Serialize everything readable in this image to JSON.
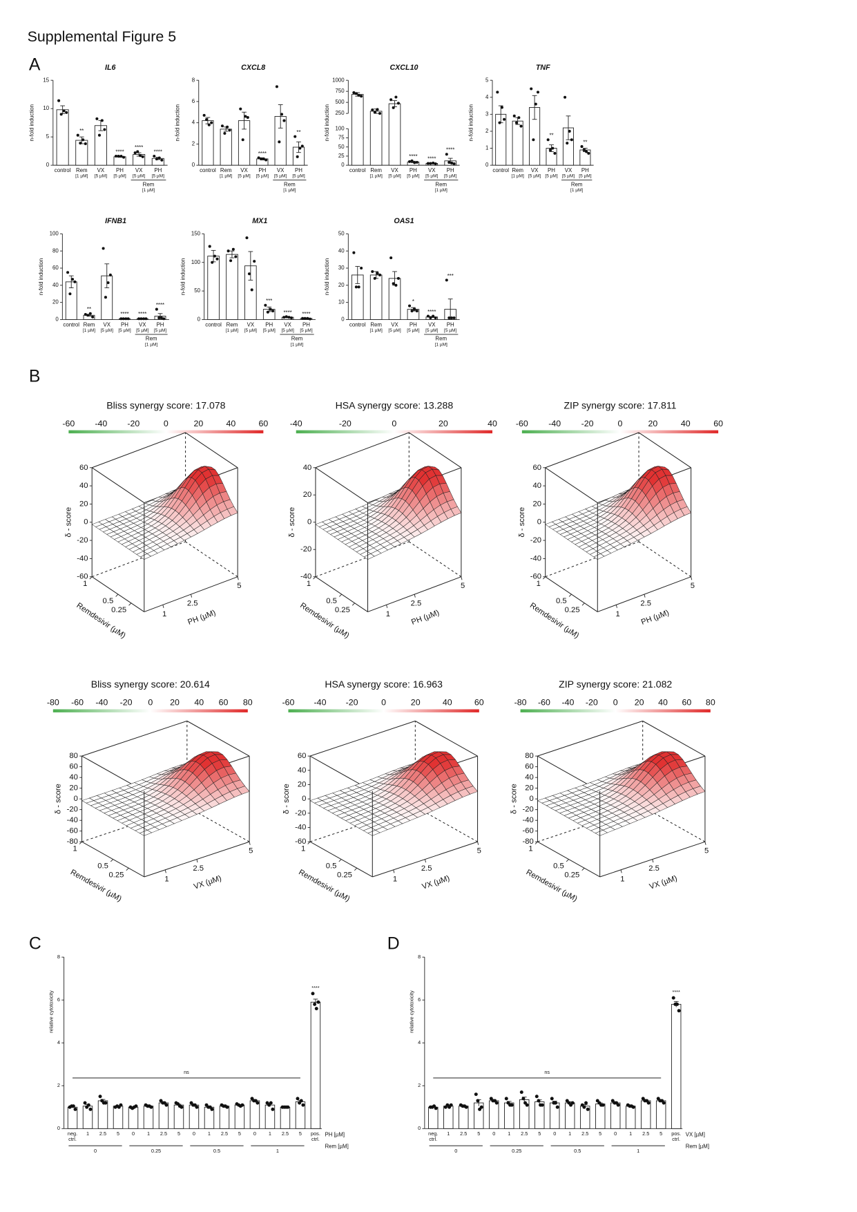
{
  "page": {
    "title": "Supplemental Figure 5",
    "panels": [
      "A",
      "B",
      "C",
      "D"
    ]
  },
  "chart_data": [
    {
      "type": "bar",
      "title": "IL6",
      "y_label": "n-fold induction",
      "categories": [
        "control",
        "Rem",
        "VX",
        "PH",
        "VX",
        "PH"
      ],
      "category_notes": [
        null,
        "[1 µM]",
        "[5 µM]",
        "[5 µM]",
        "[5 µM]",
        "[5 µM]"
      ],
      "group": {
        "label": "Rem",
        "note": "[1 µM]"
      },
      "values": [
        9.8,
        4.4,
        7.0,
        1.5,
        1.9,
        1.2
      ],
      "errors": [
        0.7,
        0.6,
        0.9,
        0.1,
        0.3,
        0.2
      ],
      "points": [
        [
          11.4,
          9.3,
          9.0,
          9.6
        ],
        [
          5.3,
          3.8,
          3.9,
          4.5
        ],
        [
          8.2,
          6.3,
          5.3,
          7.9
        ],
        [
          1.6,
          1.4,
          1.6,
          1.6
        ],
        [
          2.2,
          1.5,
          2.4,
          1.7
        ],
        [
          1.6,
          0.9,
          1.1,
          1.3
        ]
      ],
      "significance": [
        null,
        "**",
        null,
        "****",
        "****",
        "****"
      ],
      "ylim": [
        0,
        15
      ],
      "yticks": [
        0,
        5,
        10,
        15
      ]
    },
    {
      "type": "bar",
      "title": "CXCL8",
      "y_label": "n-fold induction",
      "categories": [
        "control",
        "Rem",
        "VX",
        "PH",
        "VX",
        "PH"
      ],
      "category_notes": [
        null,
        "[1 µM]",
        "[5 µM]",
        "[5 µM]",
        "[5 µM]",
        "[5 µM]"
      ],
      "group": {
        "label": "Rem",
        "note": "[1 µM]"
      },
      "values": [
        4.2,
        3.4,
        4.2,
        0.6,
        4.6,
        1.7
      ],
      "errors": [
        0.3,
        0.2,
        0.8,
        0.1,
        1.1,
        0.5
      ],
      "points": [
        [
          4.7,
          4.0,
          4.3,
          3.8
        ],
        [
          3.7,
          3.3,
          3.0,
          3.6
        ],
        [
          5.3,
          4.5,
          2.4,
          4.6
        ],
        [
          0.7,
          0.5,
          0.6,
          0.6
        ],
        [
          7.4,
          4.2,
          2.2,
          4.8
        ],
        [
          2.7,
          1.8,
          0.8,
          1.6
        ]
      ],
      "significance": [
        null,
        null,
        null,
        "****",
        null,
        "**"
      ],
      "ylim": [
        0,
        8
      ],
      "yticks": [
        0,
        2,
        4,
        6,
        8
      ]
    },
    {
      "type": "bar",
      "title": "CXCL10",
      "y_label": "n-fold induction",
      "categories": [
        "control",
        "Rem",
        "VX",
        "PH",
        "VX",
        "PH"
      ],
      "category_notes": [
        null,
        "[1 µM]",
        "[5 µM]",
        "[5 µM]",
        "[5 µM]",
        "[5 µM]"
      ],
      "group": {
        "label": "Rem",
        "note": "[1 µM]"
      },
      "values": [
        680,
        300,
        470,
        9,
        5,
        12
      ],
      "errors": [
        40,
        50,
        70,
        2,
        0.5,
        7
      ],
      "points": [
        [
          720,
          640,
          700,
          660
        ],
        [
          330,
          250,
          280,
          340
        ],
        [
          560,
          480,
          380,
          620
        ],
        [
          10,
          8,
          12,
          7
        ],
        [
          5,
          4,
          5,
          6
        ],
        [
          30,
          4,
          8,
          6
        ]
      ],
      "significance": [
        null,
        null,
        null,
        "****",
        "****",
        "****"
      ],
      "ylim": [
        0,
        1000
      ],
      "ybreak": [
        100,
        250
      ],
      "yticks": [
        0,
        25,
        50,
        75,
        100,
        250,
        500,
        750,
        1000
      ]
    },
    {
      "type": "bar",
      "title": "TNF",
      "y_label": "n-fold induction",
      "categories": [
        "control",
        "Rem",
        "VX",
        "PH",
        "VX",
        "PH"
      ],
      "category_notes": [
        null,
        "[1 µM]",
        "[5 µM]",
        "[5 µM]",
        "[5 µM]",
        "[5 µM]"
      ],
      "group": {
        "label": "Rem",
        "note": "[1 µM]"
      },
      "values": [
        3.0,
        2.6,
        3.4,
        1.0,
        2.2,
        0.9
      ],
      "errors": [
        0.5,
        0.2,
        0.7,
        0.2,
        0.7,
        0.1
      ],
      "points": [
        [
          4.3,
          2.7,
          2.5,
          3.4
        ],
        [
          2.9,
          2.3,
          2.5,
          2.8
        ],
        [
          4.5,
          4.3,
          1.5,
          3.6
        ],
        [
          1.5,
          0.7,
          0.9,
          1.0
        ],
        [
          4.0,
          1.5,
          1.3,
          2.0
        ],
        [
          1.1,
          0.7,
          0.9,
          0.8
        ]
      ],
      "significance": [
        null,
        null,
        null,
        "**",
        null,
        "**"
      ],
      "ylim": [
        0,
        5
      ],
      "yticks": [
        0,
        1,
        2,
        3,
        4,
        5
      ]
    },
    {
      "type": "bar",
      "title": "IFNB1",
      "y_label": "n-fold induction",
      "categories": [
        "control",
        "Rem",
        "VX",
        "PH",
        "VX",
        "PH"
      ],
      "category_notes": [
        null,
        "[1 µM]",
        "[5 µM]",
        "[5 µM]",
        "[5 µM]",
        "[5 µM]"
      ],
      "group": {
        "label": "Rem",
        "note": "[1 µM]"
      },
      "values": [
        44,
        5,
        51,
        1,
        1,
        4
      ],
      "errors": [
        7,
        1,
        14,
        0.5,
        0.5,
        3
      ],
      "points": [
        [
          55,
          44,
          30,
          47
        ],
        [
          6,
          3,
          5,
          7
        ],
        [
          83,
          52,
          26,
          43
        ],
        [
          1,
          1,
          1,
          1
        ],
        [
          1,
          1,
          1,
          1
        ],
        [
          12,
          1,
          2,
          2
        ]
      ],
      "significance": [
        null,
        "**",
        null,
        "****",
        "****",
        "****"
      ],
      "ylim": [
        0,
        100
      ],
      "yticks": [
        0,
        20,
        40,
        60,
        80,
        100
      ]
    },
    {
      "type": "bar",
      "title": "MX1",
      "y_label": "n-fold induction",
      "categories": [
        "control",
        "Rem",
        "VX",
        "PH",
        "VX",
        "PH"
      ],
      "category_notes": [
        null,
        "[1 µM]",
        "[5 µM]",
        "[5 µM]",
        "[5 µM]",
        "[5 µM]"
      ],
      "group": {
        "label": "Rem",
        "note": "[1 µM]"
      },
      "values": [
        111,
        114,
        94,
        18,
        4,
        2
      ],
      "errors": [
        10,
        6,
        25,
        4,
        1,
        0.5
      ],
      "points": [
        [
          128,
          106,
          100,
          111
        ],
        [
          120,
          110,
          103,
          123
        ],
        [
          143,
          102,
          80,
          52
        ],
        [
          25,
          15,
          13,
          18
        ],
        [
          4,
          3,
          5,
          4
        ],
        [
          2,
          1,
          2,
          2
        ]
      ],
      "significance": [
        null,
        null,
        null,
        "***",
        "****",
        "****"
      ],
      "ylim": [
        0,
        150
      ],
      "yticks": [
        0,
        50,
        100,
        150
      ]
    },
    {
      "type": "bar",
      "title": "OAS1",
      "y_label": "n-fold induction",
      "categories": [
        "control",
        "Rem",
        "VX",
        "PH",
        "VX",
        "PH"
      ],
      "category_notes": [
        null,
        "[1 µM]",
        "[5 µM]",
        "[5 µM]",
        "[5 µM]",
        "[5 µM]"
      ],
      "group": {
        "label": "Rem",
        "note": "[1 µM]"
      },
      "values": [
        26,
        26,
        24,
        6,
        1.5,
        6
      ],
      "errors": [
        5,
        2,
        4,
        1,
        0.3,
        6
      ],
      "points": [
        [
          39,
          30,
          19,
          19
        ],
        [
          28,
          26,
          24,
          27
        ],
        [
          36,
          24,
          21,
          20
        ],
        [
          8,
          5,
          5,
          6
        ],
        [
          2,
          1,
          1,
          2
        ],
        [
          23,
          1,
          1,
          1
        ]
      ],
      "significance": [
        null,
        null,
        null,
        "*",
        "****",
        "***"
      ],
      "ylim": [
        0,
        50
      ],
      "yticks": [
        0,
        10,
        20,
        30,
        40,
        50
      ]
    },
    {
      "type": "surface",
      "title": "Bliss synergy score: 17.078",
      "z_label": "δ - score",
      "zlim": [
        -60,
        60
      ],
      "zticks": [
        60,
        40,
        20,
        0,
        -20,
        -40,
        -60
      ],
      "colorbar_ticks": [
        -60,
        -40,
        -20,
        0,
        20,
        40,
        60
      ],
      "y_label": "Remdesivir (µM)",
      "ylim": [
        0,
        1
      ],
      "yticks": [
        0.25,
        0.5,
        1
      ],
      "x_label": "PH (µM)",
      "xlim": [
        0,
        5
      ],
      "xticks": [
        1,
        2.5,
        5
      ]
    },
    {
      "type": "surface",
      "title": "HSA synergy score: 13.288",
      "z_label": "δ - score",
      "zlim": [
        -40,
        40
      ],
      "zticks": [
        40,
        20,
        0,
        -20,
        -40
      ],
      "colorbar_ticks": [
        -40,
        -20,
        0,
        20,
        40
      ],
      "y_label": "Remdesivir (µM)",
      "ylim": [
        0,
        1
      ],
      "yticks": [
        0.25,
        0.5,
        1
      ],
      "x_label": "PH (µM)",
      "xlim": [
        0,
        5
      ],
      "xticks": [
        1,
        2.5,
        5
      ]
    },
    {
      "type": "surface",
      "title": "ZIP synergy score: 17.811",
      "z_label": "δ - score",
      "zlim": [
        -60,
        60
      ],
      "zticks": [
        60,
        40,
        20,
        0,
        -20,
        -40,
        -60
      ],
      "colorbar_ticks": [
        -60,
        -40,
        -20,
        0,
        20,
        40,
        60
      ],
      "y_label": "Remdesivir (µM)",
      "ylim": [
        0,
        1
      ],
      "yticks": [
        0.25,
        0.5,
        1
      ],
      "x_label": "PH (µM)",
      "xlim": [
        0,
        5
      ],
      "xticks": [
        1,
        2.5,
        5
      ]
    },
    {
      "type": "surface",
      "title": "Bliss synergy score: 20.614",
      "z_label": "δ - score",
      "zlim": [
        -80,
        80
      ],
      "zticks": [
        80,
        60,
        40,
        20,
        0,
        -20,
        -40,
        -60,
        -80
      ],
      "colorbar_ticks": [
        -80,
        -60,
        -40,
        -20,
        0,
        20,
        40,
        60,
        80
      ],
      "y_label": "Remdesivir (µM)",
      "ylim": [
        0,
        1
      ],
      "yticks": [
        0.25,
        0.5,
        1
      ],
      "x_label": "VX (µM)",
      "xlim": [
        0,
        5
      ],
      "xticks": [
        1,
        2.5,
        5
      ]
    },
    {
      "type": "surface",
      "title": "HSA synergy score: 16.963",
      "z_label": "δ - score",
      "zlim": [
        -60,
        60
      ],
      "zticks": [
        60,
        40,
        20,
        0,
        -20,
        -40,
        -60
      ],
      "colorbar_ticks": [
        -60,
        -40,
        -20,
        0,
        20,
        40,
        60
      ],
      "y_label": "Remdesivir (µM)",
      "ylim": [
        0,
        1
      ],
      "yticks": [
        0.25,
        0.5,
        1
      ],
      "x_label": "VX (µM)",
      "xlim": [
        0,
        5
      ],
      "xticks": [
        1,
        2.5,
        5
      ]
    },
    {
      "type": "surface",
      "title": "ZIP synergy score: 21.082",
      "z_label": "δ - score",
      "zlim": [
        -80,
        80
      ],
      "zticks": [
        80,
        60,
        40,
        20,
        0,
        -20,
        -40,
        -60,
        -80
      ],
      "colorbar_ticks": [
        -80,
        -60,
        -40,
        -20,
        0,
        20,
        40,
        60,
        80
      ],
      "y_label": "Remdesivir (µM)",
      "ylim": [
        0,
        1
      ],
      "yticks": [
        0.25,
        0.5,
        1
      ],
      "x_label": "VX (µM)",
      "xlim": [
        0,
        5
      ],
      "xticks": [
        1,
        2.5,
        5
      ]
    },
    {
      "type": "bar",
      "y_label": "relative cytotoxicity",
      "x_label": "PH [µM]",
      "group_label": "Rem [µM]",
      "groups": [
        "0",
        "0.25",
        "0.5",
        "1"
      ],
      "annotation": "ns",
      "categories": [
        "neg. ctrl.",
        "1",
        "2.5",
        "5",
        "0",
        "1",
        "2.5",
        "5",
        "0",
        "1",
        "2.5",
        "5",
        "0",
        "1",
        "2.5",
        "5",
        "pos. ctrl."
      ],
      "values": [
        1.0,
        1.05,
        1.3,
        1.05,
        1.0,
        1.05,
        1.2,
        1.1,
        1.1,
        1.0,
        1.05,
        1.1,
        1.3,
        1.1,
        1.0,
        1.25,
        5.9
      ],
      "errors": [
        0.04,
        0.07,
        0.06,
        0.02,
        0.02,
        0.02,
        0.04,
        0.04,
        0.04,
        0.04,
        0.02,
        0.02,
        0.04,
        0.07,
        0.01,
        0.06,
        0.14
      ],
      "points": [
        [
          1.0,
          0.9,
          1.05,
          1.05
        ],
        [
          1.2,
          0.9,
          1.0,
          1.1
        ],
        [
          1.5,
          1.2,
          1.3,
          1.2
        ],
        [
          1.0,
          1.1,
          1.05,
          1.0
        ],
        [
          1.0,
          1.05,
          0.95,
          1.0
        ],
        [
          1.1,
          1.0,
          1.05,
          1.05
        ],
        [
          1.3,
          1.1,
          1.2,
          1.2
        ],
        [
          1.2,
          1.0,
          1.15,
          1.05
        ],
        [
          1.2,
          1.0,
          1.1,
          1.1
        ],
        [
          1.1,
          0.9,
          1.0,
          1.0
        ],
        [
          1.1,
          1.0,
          1.05,
          1.05
        ],
        [
          1.15,
          1.1,
          1.1,
          1.05
        ],
        [
          1.4,
          1.2,
          1.3,
          1.3
        ],
        [
          1.2,
          0.9,
          1.1,
          1.2
        ],
        [
          1.0,
          1.0,
          1.0,
          1.0
        ],
        [
          1.4,
          1.1,
          1.2,
          1.3
        ],
        [
          6.3,
          5.9,
          5.8,
          5.6
        ]
      ],
      "significance": [
        null,
        null,
        null,
        null,
        null,
        null,
        null,
        null,
        null,
        null,
        null,
        null,
        null,
        null,
        null,
        null,
        "****"
      ],
      "ylim": [
        0,
        8
      ],
      "yticks": [
        0,
        2,
        4,
        6,
        8
      ]
    },
    {
      "type": "bar",
      "y_label": "relative cytotoxicity",
      "x_label": "VX [µM]",
      "group_label": "Rem [µM]",
      "groups": [
        "0",
        "0.25",
        "0.5",
        "1"
      ],
      "annotation": "ns",
      "categories": [
        "neg. ctrl.",
        "1",
        "2.5",
        "5",
        "0",
        "1",
        "2.5",
        "5",
        "0",
        "1",
        "2.5",
        "5",
        "0",
        "1",
        "2.5",
        "5",
        "pos. ctrl."
      ],
      "values": [
        1.0,
        1.05,
        1.05,
        1.2,
        1.3,
        1.2,
        1.35,
        1.25,
        1.2,
        1.2,
        1.05,
        1.15,
        1.2,
        1.05,
        1.3,
        1.3,
        5.8
      ],
      "errors": [
        0.03,
        0.05,
        0.05,
        0.15,
        0.05,
        0.07,
        0.12,
        0.09,
        0.08,
        0.05,
        0.07,
        0.05,
        0.05,
        0.03,
        0.05,
        0.05,
        0.13
      ],
      "points": [
        [
          1.0,
          0.95,
          1.0,
          1.05
        ],
        [
          1.0,
          1.1,
          1.1,
          1.0
        ],
        [
          1.1,
          1.0,
          1.05,
          1.05
        ],
        [
          1.6,
          1.0,
          1.3,
          0.9
        ],
        [
          1.4,
          1.2,
          1.3,
          1.3
        ],
        [
          1.4,
          1.1,
          1.2,
          1.1
        ],
        [
          1.7,
          1.1,
          1.4,
          1.2
        ],
        [
          1.5,
          1.1,
          1.3,
          1.1
        ],
        [
          1.4,
          1.0,
          1.2,
          1.2
        ],
        [
          1.3,
          1.2,
          1.2,
          1.1
        ],
        [
          1.1,
          0.9,
          1.0,
          1.2
        ],
        [
          1.3,
          1.1,
          1.2,
          1.1
        ],
        [
          1.3,
          1.1,
          1.2,
          1.2
        ],
        [
          1.1,
          1.0,
          1.05,
          1.05
        ],
        [
          1.4,
          1.2,
          1.3,
          1.3
        ],
        [
          1.4,
          1.2,
          1.3,
          1.3
        ],
        [
          6.1,
          5.5,
          5.8,
          5.8
        ]
      ],
      "significance": [
        null,
        null,
        null,
        null,
        null,
        null,
        null,
        null,
        null,
        null,
        null,
        null,
        null,
        null,
        null,
        null,
        "****"
      ],
      "ylim": [
        0,
        8
      ],
      "yticks": [
        0,
        2,
        4,
        6,
        8
      ]
    }
  ]
}
